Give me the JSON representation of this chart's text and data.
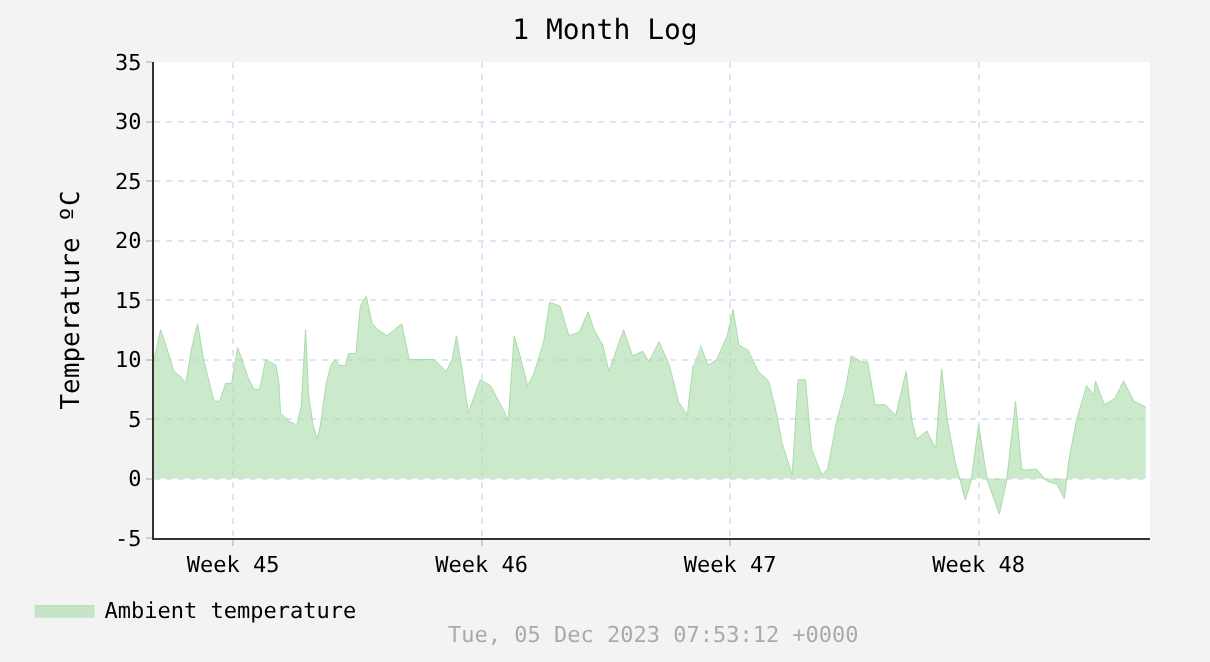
{
  "chart_data": {
    "type": "area",
    "title": "1 Month Log",
    "ylabel": "Temperature ºC",
    "annotations": [
      "Tue, 05 Dec 2023 07:53:12 +0000"
    ],
    "xlim": [
      "2023-11-07T06:30",
      "2023-12-05T07:53"
    ],
    "xticks": [
      {
        "value": "2023-11-09T12:00",
        "label": "Week 45"
      },
      {
        "value": "2023-11-16T12:00",
        "label": "Week 46"
      },
      {
        "value": "2023-11-23T12:00",
        "label": "Week 47"
      },
      {
        "value": "2023-11-30T12:00",
        "label": "Week 48"
      }
    ],
    "ylim": [
      -5,
      35
    ],
    "yticks": [
      -5,
      0,
      5,
      10,
      15,
      20,
      25,
      30,
      35
    ],
    "grid": true,
    "legend": "bottom",
    "x": [
      "2023-11-07T06:30",
      "2023-11-07T11:00",
      "2023-11-07T15:00",
      "2023-11-07T20:00",
      "2023-11-08T01:00",
      "2023-11-08T04:00",
      "2023-11-08T08:00",
      "2023-11-08T12:00",
      "2023-11-08T16:00",
      "2023-11-08T20:00",
      "2023-11-08T23:00",
      "2023-11-09T03:00",
      "2023-11-09T07:00",
      "2023-11-09T11:00",
      "2023-11-09T15:00",
      "2023-11-09T18:00",
      "2023-11-09T22:00",
      "2023-11-10T02:00",
      "2023-11-10T06:00",
      "2023-11-10T10:00",
      "2023-11-10T17:00",
      "2023-11-10T19:00",
      "2023-11-10T20:00",
      "2023-11-11T02:00",
      "2023-11-11T07:00",
      "2023-11-11T10:00",
      "2023-11-11T13:00",
      "2023-11-11T15:00",
      "2023-11-11T18:00",
      "2023-11-11T21:00",
      "2023-11-11T23:00",
      "2023-11-12T03:00",
      "2023-11-12T06:00",
      "2023-11-12T09:00",
      "2023-11-12T12:00",
      "2023-11-12T16:00",
      "2023-11-12T18:00",
      "2023-11-12T23:00",
      "2023-11-13T02:00",
      "2023-11-13T06:00",
      "2023-11-13T10:00",
      "2023-11-13T14:00",
      "2023-11-13T20:00",
      "2023-11-14T01:00",
      "2023-11-14T06:00",
      "2023-11-14T11:00",
      "2023-11-14T18:00",
      "2023-11-15T04:00",
      "2023-11-15T08:00",
      "2023-11-15T12:00",
      "2023-11-15T16:00",
      "2023-11-15T19:00",
      "2023-11-15T23:00",
      "2023-11-16T03:00",
      "2023-11-16T11:00",
      "2023-11-16T18:00",
      "2023-11-17T03:00",
      "2023-11-17T06:00",
      "2023-11-17T10:00",
      "2023-11-17T14:00",
      "2023-11-17T19:00",
      "2023-11-17T23:00",
      "2023-11-18T06:00",
      "2023-11-18T10:00",
      "2023-11-18T17:00",
      "2023-11-18T23:00",
      "2023-11-19T06:00",
      "2023-11-19T12:00",
      "2023-11-19T16:00",
      "2023-11-19T22:00",
      "2023-11-20T02:00",
      "2023-11-20T12:00",
      "2023-11-20T18:00",
      "2023-11-21T01:00",
      "2023-11-21T05:00",
      "2023-11-21T12:00",
      "2023-11-21T19:00",
      "2023-11-22T01:00",
      "2023-11-22T07:00",
      "2023-11-22T11:00",
      "2023-11-22T12:00",
      "2023-11-22T16:00",
      "2023-11-22T21:00",
      "2023-11-23T03:00",
      "2023-11-23T10:00",
      "2023-11-23T14:00",
      "2023-11-23T18:00",
      "2023-11-24T00:00",
      "2023-11-24T07:00",
      "2023-11-24T14:00",
      "2023-11-24T19:00",
      "2023-11-24T23:00",
      "2023-11-25T06:00",
      "2023-11-25T10:00",
      "2023-11-25T15:00",
      "2023-11-25T19:00",
      "2023-11-26T02:00",
      "2023-11-26T06:00",
      "2023-11-26T12:00",
      "2023-11-26T18:00",
      "2023-11-26T22:00",
      "2023-11-27T05:00",
      "2023-11-27T09:00",
      "2023-11-27T14:00",
      "2023-11-27T21:00",
      "2023-11-28T04:00",
      "2023-11-28T11:00",
      "2023-11-28T15:00",
      "2023-11-28T18:00",
      "2023-11-29T01:00",
      "2023-11-29T07:00",
      "2023-11-29T11:00",
      "2023-11-29T15:00",
      "2023-11-29T20:00",
      "2023-11-30T03:00",
      "2023-11-30T07:00",
      "2023-11-30T12:00",
      "2023-11-30T18:00",
      "2023-12-01T02:00",
      "2023-12-01T07:00",
      "2023-12-01T13:00",
      "2023-12-01T17:00",
      "2023-12-01T20:00",
      "2023-12-02T03:00",
      "2023-12-02T10:00",
      "2023-12-02T17:00",
      "2023-12-02T22:00",
      "2023-12-03T01:00",
      "2023-12-03T06:00",
      "2023-12-03T13:00",
      "2023-12-03T18:00",
      "2023-12-03T19:00",
      "2023-12-04T01:00",
      "2023-12-04T08:00",
      "2023-12-04T14:00",
      "2023-12-04T21:00",
      "2023-12-05T05:00"
    ],
    "series": [
      {
        "name": "Ambient temperature",
        "color": "#a8dca8",
        "values": [
          10,
          12.5,
          11,
          9,
          8.5,
          8,
          11,
          13,
          10,
          8,
          6.5,
          6.5,
          8,
          8,
          11,
          10,
          8.5,
          7.5,
          7.5,
          10,
          9.5,
          8,
          5.5,
          4.8,
          4.5,
          6,
          12.5,
          7,
          4.5,
          3.3,
          4.5,
          8,
          9.5,
          10,
          9.5,
          9.5,
          10.5,
          10.5,
          14.5,
          15.3,
          13,
          12.5,
          12,
          12.5,
          13,
          10,
          10,
          10,
          9.5,
          9,
          10,
          12,
          9,
          5.5,
          8.3,
          7.8,
          5.7,
          4.8,
          12,
          10.3,
          7.8,
          8.7,
          11.5,
          14.8,
          14.5,
          12,
          12.3,
          14,
          12.5,
          11.2,
          9,
          12.5,
          10.3,
          10.7,
          9.8,
          11.5,
          9.5,
          6.5,
          5.3,
          9.5,
          null,
          11.2,
          9.5,
          10,
          12,
          14.2,
          11.2,
          10.8,
          9,
          8.2,
          5.7,
          3,
          0.3,
          8.3,
          8.3,
          2.5,
          0.3,
          0.8,
          4.8,
          7.5,
          10.3,
          9.8,
          9.8,
          6.2,
          6.2,
          5.3,
          9,
          4.8,
          3.3,
          4,
          2.5,
          9.2,
          4.8,
          1.5,
          -1.8,
          -0.2,
          4.5,
          -0.2,
          -3,
          -0.2,
          6.5,
          0.8,
          0.7,
          0.8,
          -0.2,
          -0.5,
          -1.7,
          1.5,
          4.8,
          7.8,
          7,
          8.2,
          6.2,
          6.7,
          8.2,
          6.5,
          6
        ]
      }
    ]
  }
}
